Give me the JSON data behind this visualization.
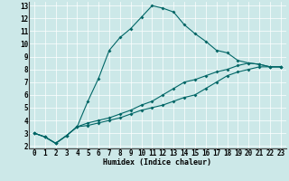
{
  "xlabel": "Humidex (Indice chaleur)",
  "bg_color": "#cce8e8",
  "grid_color": "#aacccc",
  "line_color": "#006666",
  "xlim": [
    -0.5,
    23.5
  ],
  "ylim": [
    1.8,
    13.3
  ],
  "xticks": [
    0,
    1,
    2,
    3,
    4,
    5,
    6,
    7,
    8,
    9,
    10,
    11,
    12,
    13,
    14,
    15,
    16,
    17,
    18,
    19,
    20,
    21,
    22,
    23
  ],
  "yticks": [
    2,
    3,
    4,
    5,
    6,
    7,
    8,
    9,
    10,
    11,
    12,
    13
  ],
  "line1_x": [
    0,
    1,
    2,
    3,
    4,
    5,
    6,
    7,
    8,
    9,
    10,
    11,
    12,
    13,
    14,
    15,
    16,
    17,
    18,
    19,
    20,
    21,
    22,
    23
  ],
  "line1_y": [
    3.0,
    2.7,
    2.2,
    2.8,
    3.5,
    5.5,
    7.3,
    9.5,
    10.5,
    11.2,
    12.1,
    13.0,
    12.8,
    12.5,
    11.5,
    10.8,
    10.2,
    9.5,
    9.3,
    8.7,
    8.5,
    8.4,
    8.2,
    8.2
  ],
  "line2_x": [
    0,
    1,
    2,
    3,
    4,
    5,
    6,
    7,
    8,
    9,
    10,
    11,
    12,
    13,
    14,
    15,
    16,
    17,
    18,
    19,
    20,
    21,
    22,
    23
  ],
  "line2_y": [
    3.0,
    2.7,
    2.2,
    2.8,
    3.5,
    3.8,
    4.0,
    4.2,
    4.5,
    4.8,
    5.2,
    5.5,
    6.0,
    6.5,
    7.0,
    7.2,
    7.5,
    7.8,
    8.0,
    8.3,
    8.5,
    8.4,
    8.2,
    8.2
  ],
  "line3_x": [
    0,
    1,
    2,
    3,
    4,
    5,
    6,
    7,
    8,
    9,
    10,
    11,
    12,
    13,
    14,
    15,
    16,
    17,
    18,
    19,
    20,
    21,
    22,
    23
  ],
  "line3_y": [
    3.0,
    2.7,
    2.2,
    2.8,
    3.5,
    3.6,
    3.8,
    4.0,
    4.2,
    4.5,
    4.8,
    5.0,
    5.2,
    5.5,
    5.8,
    6.0,
    6.5,
    7.0,
    7.5,
    7.8,
    8.0,
    8.2,
    8.2,
    8.2
  ],
  "tick_fontsize": 5.5,
  "xlabel_fontsize": 6.0
}
